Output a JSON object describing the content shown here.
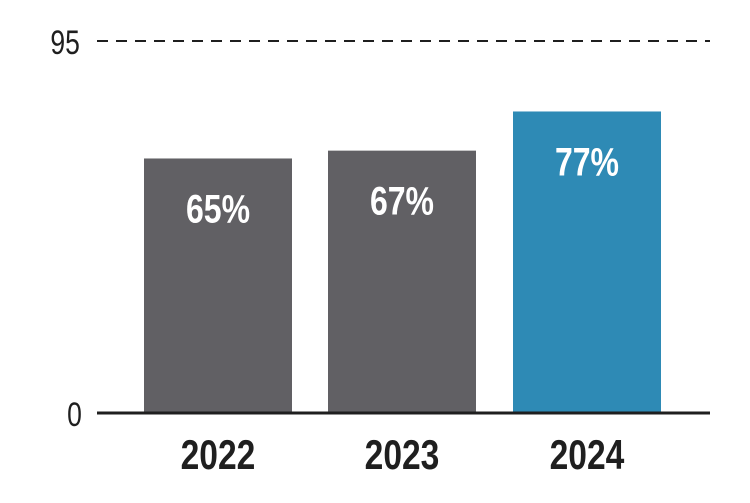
{
  "chart_data": {
    "type": "bar",
    "categories": [
      "2022",
      "2023",
      "2024"
    ],
    "values": [
      65,
      67,
      77
    ],
    "value_labels": [
      "65%",
      "67%",
      "77%"
    ],
    "ylim": [
      0,
      95
    ],
    "yticks": [
      0,
      95
    ],
    "ytick_labels": [
      "0",
      "95"
    ],
    "grid": "dashed line at top tick",
    "bar_colors": [
      "#616064",
      "#616064",
      "#2e8ab5"
    ],
    "axis_color": "#1f1f1f"
  }
}
